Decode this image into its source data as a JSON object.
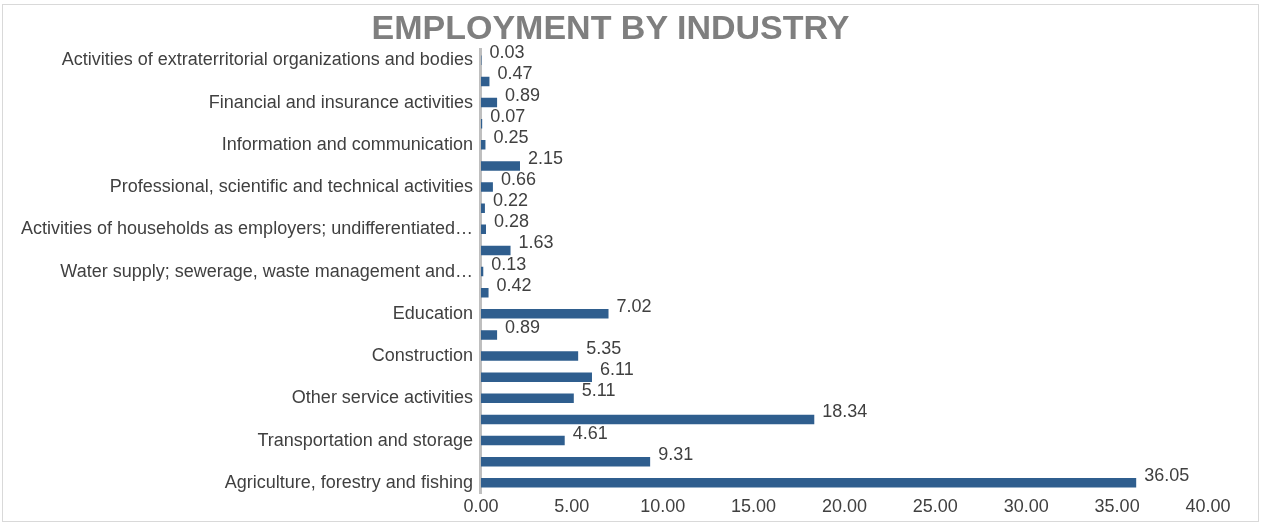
{
  "chart_data": {
    "type": "bar",
    "orientation": "horizontal",
    "title": "EMPLOYMENT BY INDUSTRY",
    "categories": [
      "Activities of extraterritorial organizations and bodies",
      null,
      "Financial and insurance activities",
      null,
      "Information and communication",
      null,
      "Professional, scientific and technical activities",
      null,
      "Activities of households as employers; undifferentiated…",
      null,
      "Water supply; sewerage, waste management and…",
      null,
      "Education",
      null,
      "Construction",
      null,
      "Other service activities",
      null,
      "Transportation and storage",
      null,
      "Agriculture, forestry and fishing"
    ],
    "values": [
      0.03,
      0.47,
      0.89,
      0.07,
      0.25,
      2.15,
      0.66,
      0.22,
      0.28,
      1.63,
      0.13,
      0.42,
      7.02,
      0.89,
      5.35,
      6.11,
      5.11,
      18.34,
      4.61,
      9.31,
      36.05
    ],
    "color": "#2f5e8e",
    "xlim": [
      0,
      40
    ],
    "xticks": [
      {
        "value": 0,
        "label": "0.00"
      },
      {
        "value": 5,
        "label": "5.00"
      },
      {
        "value": 10,
        "label": "10.00"
      },
      {
        "value": 15,
        "label": "15.00"
      },
      {
        "value": 20,
        "label": "20.00"
      },
      {
        "value": 25,
        "label": "25.00"
      },
      {
        "value": 30,
        "label": "30.00"
      },
      {
        "value": 35,
        "label": "35.00"
      },
      {
        "value": 40,
        "label": "40.00"
      }
    ],
    "data_labels": true,
    "grid": false,
    "legend": false
  }
}
